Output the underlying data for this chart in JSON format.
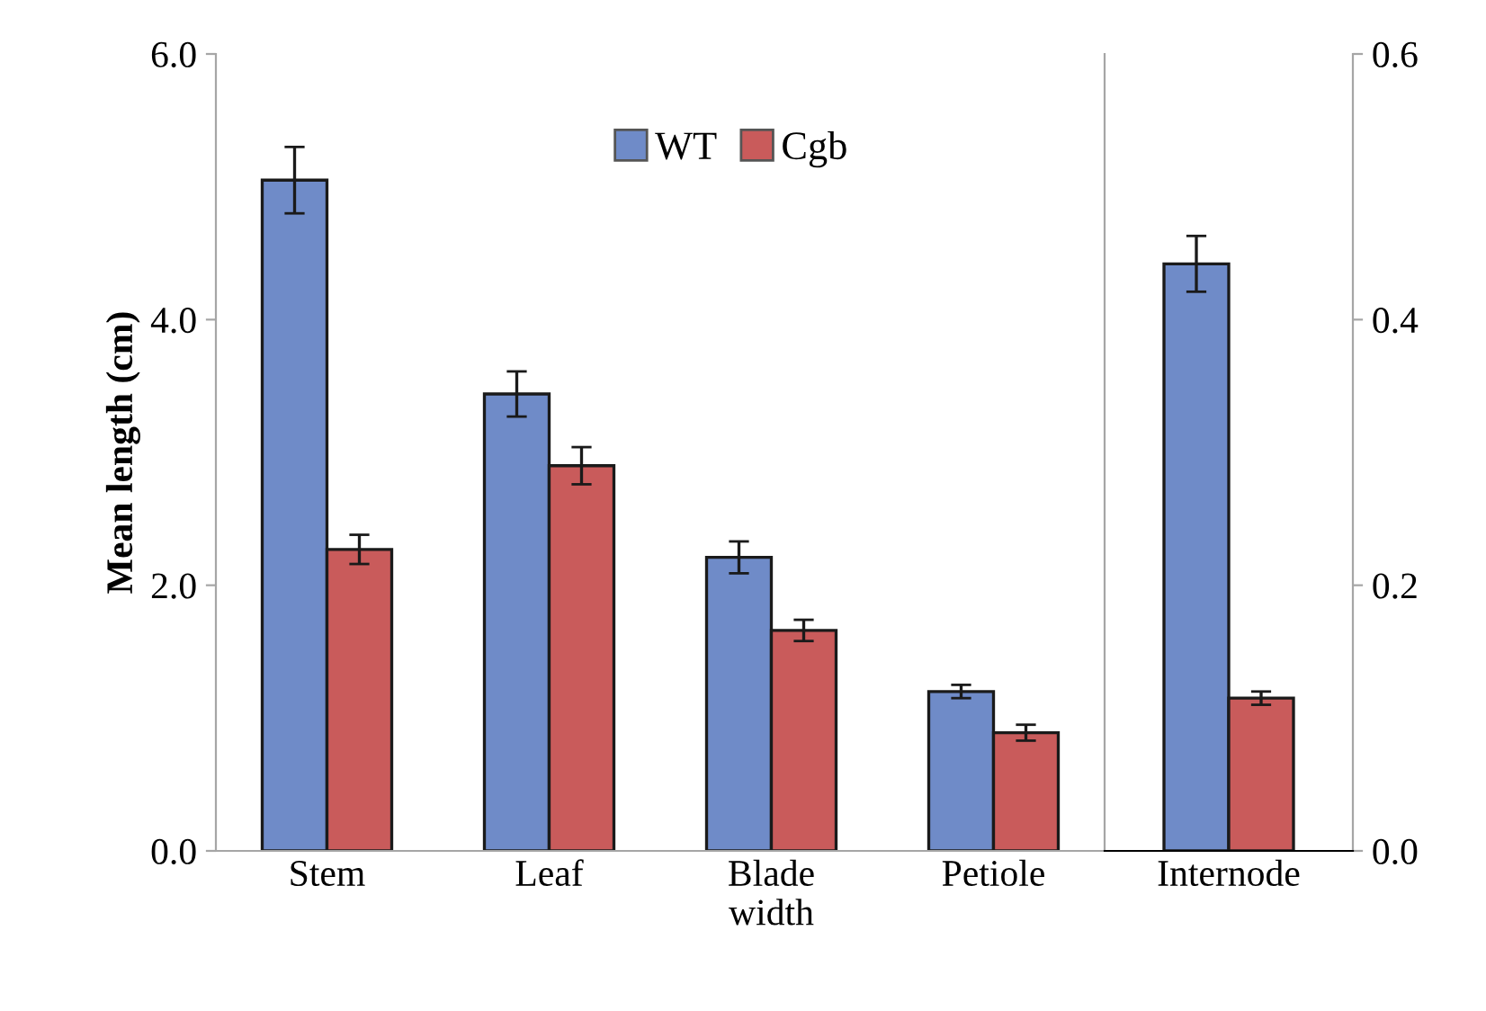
{
  "chart_data": [
    {
      "type": "bar",
      "ylabel": "Mean length (cm)",
      "categories": [
        "Stem",
        "Leaf",
        "Blade\nwidth",
        "Petiole"
      ],
      "series": [
        {
          "name": "WT",
          "color": "#6f8bc8",
          "values": [
            5.05,
            3.44,
            2.21,
            1.2
          ],
          "errors": [
            0.25,
            0.17,
            0.12,
            0.05
          ]
        },
        {
          "name": "Cgb",
          "color": "#c95b5b",
          "values": [
            2.27,
            2.9,
            1.66,
            0.89
          ],
          "errors": [
            0.11,
            0.14,
            0.08,
            0.06
          ]
        }
      ],
      "ylim": [
        0,
        6
      ],
      "yticks": [
        {
          "value": 0,
          "label": "0.0"
        },
        {
          "value": 2,
          "label": "2.0"
        },
        {
          "value": 4,
          "label": "4.0"
        },
        {
          "value": 6,
          "label": "6.0"
        }
      ],
      "legend": "top",
      "grid": false
    },
    {
      "type": "bar",
      "categories": [
        "Internode"
      ],
      "series": [
        {
          "color": "#6f8bc8",
          "values": [
            0.442
          ],
          "errors": [
            0.021
          ],
          "axis": "y2"
        },
        {
          "color": "#c95b5b",
          "values": [
            0.115
          ],
          "errors": [
            0.005
          ],
          "axis": "y2"
        }
      ],
      "y2lim": [
        0,
        0.6
      ],
      "y2ticks": [
        {
          "value": 0,
          "label": "0.0"
        },
        {
          "value": 0.2,
          "label": "0.2"
        },
        {
          "value": 0.4,
          "label": "0.4"
        },
        {
          "value": 0.6,
          "label": "0.6"
        }
      ],
      "grid": false
    }
  ]
}
